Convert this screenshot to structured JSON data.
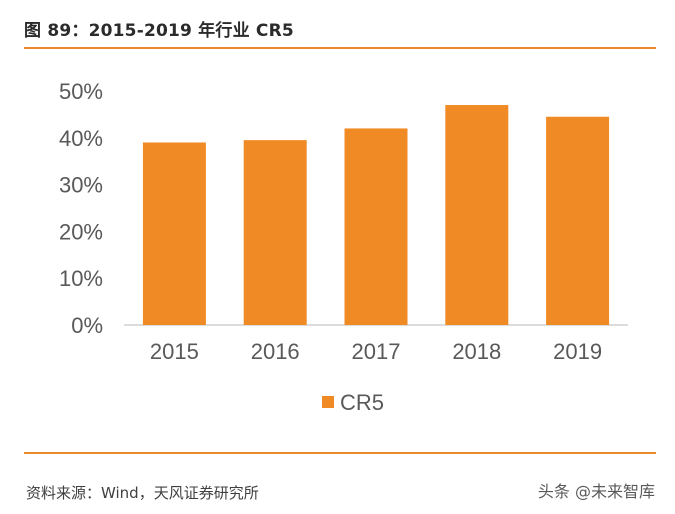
{
  "figure": {
    "title": "图 89：2015-2019 年行业 CR5",
    "source": "资料来源：Wind，天风证券研究所",
    "watermark": "头条 @未来智库"
  },
  "colors": {
    "bar": "#f08a24",
    "rule": "#e8892b",
    "axis": "#d0d0d0",
    "text": "#595959"
  },
  "chart_data": {
    "type": "bar",
    "title": "",
    "xlabel": "",
    "ylabel": "",
    "categories": [
      "2015",
      "2016",
      "2017",
      "2018",
      "2019"
    ],
    "series": [
      {
        "name": "CR5",
        "values": [
          39,
          39.5,
          42,
          47,
          44.5
        ]
      }
    ],
    "ylim": [
      0,
      50
    ],
    "yticks": [
      0,
      10,
      20,
      30,
      40,
      50
    ],
    "ytick_labels": [
      "0%",
      "10%",
      "20%",
      "30%",
      "40%",
      "50%"
    ],
    "grid": false,
    "legend": "bottom"
  }
}
